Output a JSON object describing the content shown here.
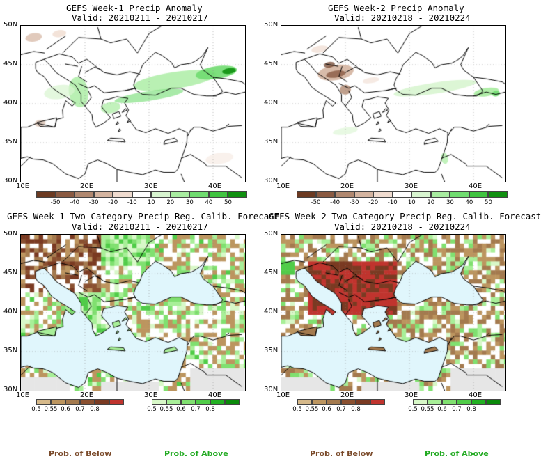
{
  "panels": [
    {
      "title": "GEFS Week-1 Precip Anomaly",
      "valid": "Valid: 20210211 - 20210217",
      "kind": "anomaly"
    },
    {
      "title": "GEFS Week-2 Precip Anomaly",
      "valid": "Valid: 20210218 - 20210224",
      "kind": "anomaly"
    },
    {
      "title": "GEFS Week-1 Two-Category Precip Reg. Calib. Forecast",
      "valid": "Valid: 20210211 - 20210217",
      "kind": "prob"
    },
    {
      "title": "GEFS Week-2 Two-Category Precip Reg. Calib. Forecast",
      "valid": "Valid: 20210218 - 20210224",
      "kind": "prob"
    }
  ],
  "axes": {
    "lat_labels": [
      "50N",
      "45N",
      "40N",
      "35N",
      "30N"
    ],
    "lon_labels": [
      "10E",
      "20E",
      "30E",
      "40E"
    ]
  },
  "anomaly_colorbar": {
    "labels": [
      "-50",
      "-40",
      "-30",
      "-20",
      "-10",
      "10",
      "20",
      "30",
      "40",
      "50"
    ],
    "colors": [
      "#6b3a22",
      "#8a5a42",
      "#b08870",
      "#d4b4a0",
      "#f0dcd0",
      "#ffffff",
      "#d8f5d0",
      "#a8eca0",
      "#70dc70",
      "#40c440",
      "#109010"
    ]
  },
  "prob_below_colorbar": {
    "labels": [
      "0.5",
      "0.55",
      "0.6",
      "0.7",
      "0.8"
    ],
    "colors": [
      "#d6b98a",
      "#bc955f",
      "#a47a4e",
      "#8a5030",
      "#7a3a22",
      "#c0342e"
    ]
  },
  "prob_above_colorbar": {
    "labels": [
      "0.5",
      "0.55",
      "0.6",
      "0.7",
      "0.8"
    ],
    "colors": [
      "#d8f8c8",
      "#a8ef98",
      "#80e070",
      "#50cc48",
      "#22b022",
      "#0a8a0a"
    ]
  },
  "footer": {
    "below": "Prob. of Below",
    "above": "Prob. of Above"
  },
  "colors": {
    "sea": "#e0f6fc",
    "land_noskill": "#ffffff",
    "no_data": "#e6e6e6",
    "below_text": "#7a4a2a",
    "above_text": "#22aa22"
  }
}
